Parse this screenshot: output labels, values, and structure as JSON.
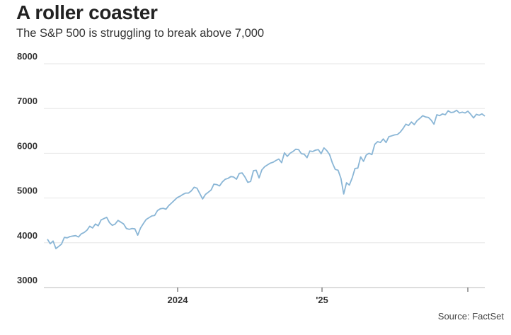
{
  "chart_data": {
    "type": "line",
    "title": "A roller coaster",
    "subtitle": "The S&P 500 is struggling to break above 7,000",
    "source": "Source: FactSet",
    "ylim": [
      3000,
      8000
    ],
    "y_ticks": [
      "8000",
      "7000",
      "6000",
      "5000",
      "4000",
      "3000"
    ],
    "x_ticks": [
      "2024",
      "'25",
      ""
    ],
    "grid": true,
    "line_color": "#8ab6d6",
    "series": [
      {
        "x": [
          0,
          1,
          2,
          3,
          4,
          5,
          6,
          7,
          8,
          9,
          10,
          11,
          12,
          13,
          14,
          15,
          16,
          17,
          18,
          19,
          20,
          21,
          22,
          23,
          24,
          25,
          26,
          27,
          28,
          29,
          30,
          31,
          32,
          33,
          34,
          35,
          36,
          37,
          38,
          39,
          40,
          41,
          42,
          43,
          44,
          45,
          46,
          47,
          48,
          49,
          50,
          51,
          52,
          53,
          54,
          55,
          56,
          57,
          58,
          59,
          60,
          61,
          62,
          63,
          64,
          65,
          66,
          67,
          68,
          69,
          70,
          71,
          72,
          73,
          74,
          75,
          76,
          77,
          78,
          79,
          80,
          81,
          82,
          83,
          84,
          85,
          86,
          87,
          88,
          89,
          90,
          91,
          92,
          93,
          94,
          95,
          96,
          97,
          98,
          99,
          100,
          101,
          102,
          103,
          104,
          105,
          106,
          107,
          108,
          109,
          110,
          111,
          112,
          113,
          114,
          115,
          116,
          117,
          118,
          119,
          120,
          121,
          122,
          123,
          124,
          125,
          126,
          127,
          128,
          129,
          130,
          131,
          132,
          133,
          134,
          135,
          136,
          137,
          138,
          139,
          140,
          141,
          142,
          143,
          144,
          145,
          146,
          147,
          148,
          149,
          150,
          151,
          152,
          153,
          154,
          155
        ],
        "values": [
          4080,
          3980,
          4040,
          3870,
          3920,
          3970,
          4120,
          4110,
          4140,
          4150,
          4160,
          4130,
          4200,
          4230,
          4280,
          4370,
          4330,
          4420,
          4380,
          4510,
          4540,
          4570,
          4450,
          4390,
          4420,
          4500,
          4460,
          4420,
          4320,
          4300,
          4320,
          4310,
          4170,
          4330,
          4430,
          4520,
          4560,
          4600,
          4610,
          4720,
          4760,
          4770,
          4750,
          4830,
          4890,
          4950,
          5010,
          5040,
          5080,
          5110,
          5110,
          5160,
          5240,
          5220,
          5100,
          4980,
          5080,
          5130,
          5180,
          5310,
          5300,
          5270,
          5360,
          5420,
          5440,
          5480,
          5470,
          5420,
          5550,
          5560,
          5470,
          5350,
          5370,
          5610,
          5620,
          5450,
          5630,
          5700,
          5740,
          5780,
          5800,
          5840,
          5870,
          5790,
          6010,
          5930,
          6000,
          6040,
          6090,
          6080,
          5990,
          5980,
          5900,
          6050,
          6040,
          6070,
          6080,
          5990,
          6120,
          6060,
          5970,
          5780,
          5640,
          5620,
          5440,
          5090,
          5340,
          5290,
          5450,
          5660,
          5670,
          5920,
          5820,
          5960,
          6000,
          5970,
          6200,
          6260,
          6240,
          6320,
          6240,
          6370,
          6390,
          6410,
          6420,
          6470,
          6550,
          6650,
          6620,
          6700,
          6640,
          6730,
          6780,
          6840,
          6810,
          6800,
          6740,
          6650,
          6860,
          6840,
          6880,
          6860,
          6950,
          6910,
          6920,
          6960,
          6900,
          6920,
          6900,
          6940,
          6870,
          6790,
          6870,
          6850,
          6880,
          6830
        ]
      }
    ]
  }
}
